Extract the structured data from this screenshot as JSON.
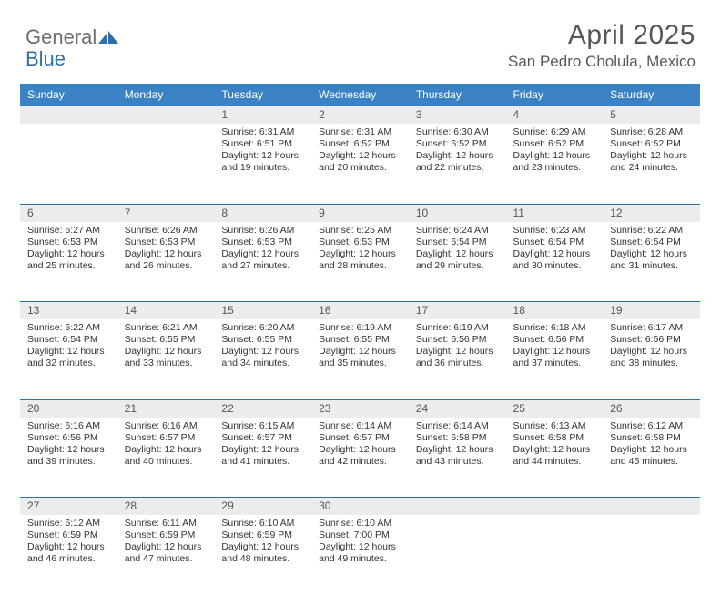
{
  "brand": {
    "general": "General",
    "blue": "Blue"
  },
  "title": "April 2025",
  "location": "San Pedro Cholula, Mexico",
  "colors": {
    "header_bg": "#3a82c4",
    "header_border": "#2f6fa8",
    "daynum_bg": "#ececec",
    "text": "#333333",
    "title_text": "#575757"
  },
  "weekdays": [
    "Sunday",
    "Monday",
    "Tuesday",
    "Wednesday",
    "Thursday",
    "Friday",
    "Saturday"
  ],
  "weeks": [
    {
      "nums": [
        "",
        "",
        "1",
        "2",
        "3",
        "4",
        "5"
      ],
      "cells": [
        null,
        null,
        {
          "sr": "Sunrise: 6:31 AM",
          "ss": "Sunset: 6:51 PM",
          "d1": "Daylight: 12 hours",
          "d2": "and 19 minutes."
        },
        {
          "sr": "Sunrise: 6:31 AM",
          "ss": "Sunset: 6:52 PM",
          "d1": "Daylight: 12 hours",
          "d2": "and 20 minutes."
        },
        {
          "sr": "Sunrise: 6:30 AM",
          "ss": "Sunset: 6:52 PM",
          "d1": "Daylight: 12 hours",
          "d2": "and 22 minutes."
        },
        {
          "sr": "Sunrise: 6:29 AM",
          "ss": "Sunset: 6:52 PM",
          "d1": "Daylight: 12 hours",
          "d2": "and 23 minutes."
        },
        {
          "sr": "Sunrise: 6:28 AM",
          "ss": "Sunset: 6:52 PM",
          "d1": "Daylight: 12 hours",
          "d2": "and 24 minutes."
        }
      ]
    },
    {
      "nums": [
        "6",
        "7",
        "8",
        "9",
        "10",
        "11",
        "12"
      ],
      "cells": [
        {
          "sr": "Sunrise: 6:27 AM",
          "ss": "Sunset: 6:53 PM",
          "d1": "Daylight: 12 hours",
          "d2": "and 25 minutes."
        },
        {
          "sr": "Sunrise: 6:26 AM",
          "ss": "Sunset: 6:53 PM",
          "d1": "Daylight: 12 hours",
          "d2": "and 26 minutes."
        },
        {
          "sr": "Sunrise: 6:26 AM",
          "ss": "Sunset: 6:53 PM",
          "d1": "Daylight: 12 hours",
          "d2": "and 27 minutes."
        },
        {
          "sr": "Sunrise: 6:25 AM",
          "ss": "Sunset: 6:53 PM",
          "d1": "Daylight: 12 hours",
          "d2": "and 28 minutes."
        },
        {
          "sr": "Sunrise: 6:24 AM",
          "ss": "Sunset: 6:54 PM",
          "d1": "Daylight: 12 hours",
          "d2": "and 29 minutes."
        },
        {
          "sr": "Sunrise: 6:23 AM",
          "ss": "Sunset: 6:54 PM",
          "d1": "Daylight: 12 hours",
          "d2": "and 30 minutes."
        },
        {
          "sr": "Sunrise: 6:22 AM",
          "ss": "Sunset: 6:54 PM",
          "d1": "Daylight: 12 hours",
          "d2": "and 31 minutes."
        }
      ]
    },
    {
      "nums": [
        "13",
        "14",
        "15",
        "16",
        "17",
        "18",
        "19"
      ],
      "cells": [
        {
          "sr": "Sunrise: 6:22 AM",
          "ss": "Sunset: 6:54 PM",
          "d1": "Daylight: 12 hours",
          "d2": "and 32 minutes."
        },
        {
          "sr": "Sunrise: 6:21 AM",
          "ss": "Sunset: 6:55 PM",
          "d1": "Daylight: 12 hours",
          "d2": "and 33 minutes."
        },
        {
          "sr": "Sunrise: 6:20 AM",
          "ss": "Sunset: 6:55 PM",
          "d1": "Daylight: 12 hours",
          "d2": "and 34 minutes."
        },
        {
          "sr": "Sunrise: 6:19 AM",
          "ss": "Sunset: 6:55 PM",
          "d1": "Daylight: 12 hours",
          "d2": "and 35 minutes."
        },
        {
          "sr": "Sunrise: 6:19 AM",
          "ss": "Sunset: 6:56 PM",
          "d1": "Daylight: 12 hours",
          "d2": "and 36 minutes."
        },
        {
          "sr": "Sunrise: 6:18 AM",
          "ss": "Sunset: 6:56 PM",
          "d1": "Daylight: 12 hours",
          "d2": "and 37 minutes."
        },
        {
          "sr": "Sunrise: 6:17 AM",
          "ss": "Sunset: 6:56 PM",
          "d1": "Daylight: 12 hours",
          "d2": "and 38 minutes."
        }
      ]
    },
    {
      "nums": [
        "20",
        "21",
        "22",
        "23",
        "24",
        "25",
        "26"
      ],
      "cells": [
        {
          "sr": "Sunrise: 6:16 AM",
          "ss": "Sunset: 6:56 PM",
          "d1": "Daylight: 12 hours",
          "d2": "and 39 minutes."
        },
        {
          "sr": "Sunrise: 6:16 AM",
          "ss": "Sunset: 6:57 PM",
          "d1": "Daylight: 12 hours",
          "d2": "and 40 minutes."
        },
        {
          "sr": "Sunrise: 6:15 AM",
          "ss": "Sunset: 6:57 PM",
          "d1": "Daylight: 12 hours",
          "d2": "and 41 minutes."
        },
        {
          "sr": "Sunrise: 6:14 AM",
          "ss": "Sunset: 6:57 PM",
          "d1": "Daylight: 12 hours",
          "d2": "and 42 minutes."
        },
        {
          "sr": "Sunrise: 6:14 AM",
          "ss": "Sunset: 6:58 PM",
          "d1": "Daylight: 12 hours",
          "d2": "and 43 minutes."
        },
        {
          "sr": "Sunrise: 6:13 AM",
          "ss": "Sunset: 6:58 PM",
          "d1": "Daylight: 12 hours",
          "d2": "and 44 minutes."
        },
        {
          "sr": "Sunrise: 6:12 AM",
          "ss": "Sunset: 6:58 PM",
          "d1": "Daylight: 12 hours",
          "d2": "and 45 minutes."
        }
      ]
    },
    {
      "nums": [
        "27",
        "28",
        "29",
        "30",
        "",
        "",
        ""
      ],
      "cells": [
        {
          "sr": "Sunrise: 6:12 AM",
          "ss": "Sunset: 6:59 PM",
          "d1": "Daylight: 12 hours",
          "d2": "and 46 minutes."
        },
        {
          "sr": "Sunrise: 6:11 AM",
          "ss": "Sunset: 6:59 PM",
          "d1": "Daylight: 12 hours",
          "d2": "and 47 minutes."
        },
        {
          "sr": "Sunrise: 6:10 AM",
          "ss": "Sunset: 6:59 PM",
          "d1": "Daylight: 12 hours",
          "d2": "and 48 minutes."
        },
        {
          "sr": "Sunrise: 6:10 AM",
          "ss": "Sunset: 7:00 PM",
          "d1": "Daylight: 12 hours",
          "d2": "and 49 minutes."
        },
        null,
        null,
        null
      ]
    }
  ]
}
